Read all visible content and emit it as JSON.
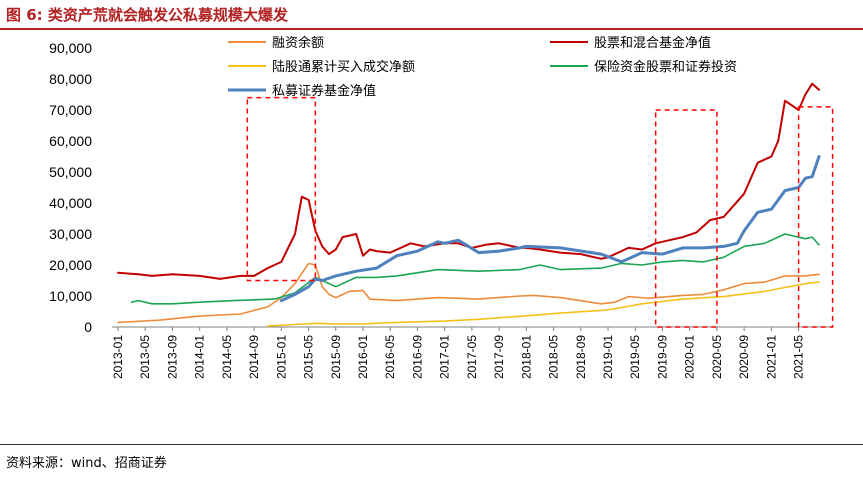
{
  "figure": {
    "title": "图 6:  类资产荒就会触发公私募规模大爆发",
    "source": "资料来源：wind、招商证券"
  },
  "chart_data": {
    "type": "line",
    "title": "图 6:  类资产荒就会触发公私募规模大爆发",
    "ylim": [
      0,
      90000
    ],
    "yticks": [
      0,
      10000,
      20000,
      30000,
      40000,
      50000,
      60000,
      70000,
      80000,
      90000
    ],
    "ytick_labels": [
      "0",
      "10,000",
      "20,000",
      "30,000",
      "40,000",
      "50,000",
      "60,000",
      "70,000",
      "80,000",
      "90,000"
    ],
    "xlim": [
      "2013-01",
      "2021-08"
    ],
    "xtick_labels": [
      "2013-01",
      "2013-05",
      "2013-09",
      "2014-01",
      "2014-05",
      "2014-09",
      "2015-01",
      "2015-05",
      "2015-09",
      "2016-01",
      "2016-05",
      "2016-09",
      "2017-01",
      "2017-05",
      "2017-09",
      "2018-01",
      "2018-05",
      "2018-09",
      "2019-01",
      "2019-05",
      "2019-09",
      "2020-01",
      "2020-05",
      "2020-09",
      "2021-01",
      "2021-05"
    ],
    "legend_position": "top",
    "series": [
      {
        "name": "融资余额",
        "color": "#ed8c3d",
        "width": 1.6,
        "x": [
          "2013-01",
          "2013-07",
          "2014-01",
          "2014-07",
          "2014-11",
          "2015-01",
          "2015-03",
          "2015-05",
          "2015-06",
          "2015-07",
          "2015-08",
          "2015-09",
          "2015-11",
          "2016-01",
          "2016-02",
          "2016-06",
          "2016-12",
          "2017-06",
          "2017-12",
          "2018-02",
          "2018-06",
          "2018-12",
          "2019-02",
          "2019-04",
          "2019-07",
          "2019-12",
          "2020-03",
          "2020-06",
          "2020-09",
          "2020-12",
          "2021-03",
          "2021-06",
          "2021-08"
        ],
        "values": [
          1500,
          2200,
          3500,
          4200,
          6500,
          9500,
          14000,
          20500,
          20000,
          13000,
          10500,
          9500,
          11500,
          11800,
          9000,
          8500,
          9500,
          9000,
          10000,
          10200,
          9500,
          7500,
          8000,
          9800,
          9300,
          10200,
          10500,
          12000,
          14000,
          14500,
          16500,
          16500,
          17000
        ]
      },
      {
        "name": "股票和混合基金净值",
        "color": "#c00000",
        "width": 2,
        "x": [
          "2013-01",
          "2013-04",
          "2013-06",
          "2013-09",
          "2014-01",
          "2014-04",
          "2014-07",
          "2014-09",
          "2014-11",
          "2015-01",
          "2015-03",
          "2015-04",
          "2015-05",
          "2015-06",
          "2015-07",
          "2015-08",
          "2015-09",
          "2015-10",
          "2015-12",
          "2016-01",
          "2016-02",
          "2016-03",
          "2016-05",
          "2016-08",
          "2016-10",
          "2017-01",
          "2017-03",
          "2017-05",
          "2017-07",
          "2017-09",
          "2017-12",
          "2018-01",
          "2018-03",
          "2018-06",
          "2018-09",
          "2018-12",
          "2019-01",
          "2019-04",
          "2019-06",
          "2019-08",
          "2019-10",
          "2019-12",
          "2020-02",
          "2020-04",
          "2020-06",
          "2020-07",
          "2020-09",
          "2020-11",
          "2021-01",
          "2021-02",
          "2021-03",
          "2021-05",
          "2021-06",
          "2021-07",
          "2021-08"
        ],
        "values": [
          17500,
          17000,
          16500,
          17000,
          16500,
          15500,
          16500,
          16500,
          19000,
          21000,
          30000,
          42000,
          41000,
          31000,
          26000,
          23500,
          25000,
          29000,
          30000,
          23000,
          25000,
          24500,
          24000,
          27000,
          26000,
          27000,
          27000,
          25500,
          26500,
          27000,
          25500,
          25500,
          25000,
          24000,
          23500,
          22000,
          22500,
          25500,
          25000,
          27000,
          28000,
          29000,
          30500,
          34500,
          35500,
          38000,
          43000,
          53000,
          55000,
          60000,
          73000,
          70000,
          75000,
          78500,
          76500
        ]
      },
      {
        "name": "陆股通累计买入成交净额",
        "color": "#f5c01a",
        "width": 1.6,
        "x": [
          "2014-11",
          "2015-03",
          "2015-06",
          "2015-09",
          "2016-01",
          "2016-06",
          "2017-01",
          "2017-06",
          "2018-01",
          "2018-06",
          "2019-01",
          "2019-06",
          "2019-12",
          "2020-06",
          "2020-12",
          "2021-06",
          "2021-08"
        ],
        "values": [
          300,
          800,
          1200,
          1000,
          1000,
          1500,
          1900,
          2500,
          3600,
          4500,
          5500,
          7500,
          9000,
          9800,
          11500,
          14000,
          14500
        ]
      },
      {
        "name": "保险资金股票和证券投资",
        "color": "#1aa552",
        "width": 1.6,
        "x": [
          "2013-03",
          "2013-04",
          "2013-06",
          "2013-09",
          "2014-01",
          "2014-06",
          "2014-12",
          "2015-03",
          "2015-06",
          "2015-09",
          "2015-12",
          "2016-03",
          "2016-06",
          "2016-12",
          "2017-06",
          "2017-12",
          "2018-03",
          "2018-06",
          "2018-12",
          "2019-03",
          "2019-06",
          "2019-09",
          "2019-12",
          "2020-03",
          "2020-06",
          "2020-09",
          "2020-12",
          "2021-03",
          "2021-06",
          "2021-07",
          "2021-08"
        ],
        "values": [
          8000,
          8500,
          7500,
          7500,
          8000,
          8500,
          9000,
          11000,
          16000,
          13000,
          16000,
          16000,
          16500,
          18500,
          18000,
          18500,
          20000,
          18500,
          19000,
          20500,
          20000,
          21000,
          21500,
          21000,
          22500,
          26000,
          27000,
          30000,
          28500,
          29000,
          26500
        ]
      },
      {
        "name": "私募证券基金净值",
        "color": "#4e81bd",
        "width": 3,
        "x": [
          "2015-01",
          "2015-03",
          "2015-05",
          "2015-06",
          "2015-07",
          "2015-09",
          "2015-12",
          "2016-03",
          "2016-06",
          "2016-09",
          "2016-12",
          "2017-01",
          "2017-03",
          "2017-06",
          "2017-09",
          "2017-12",
          "2018-01",
          "2018-06",
          "2018-12",
          "2019-03",
          "2019-06",
          "2019-09",
          "2019-12",
          "2020-03",
          "2020-06",
          "2020-08",
          "2020-09",
          "2020-11",
          "2021-01",
          "2021-03",
          "2021-05",
          "2021-06",
          "2021-07",
          "2021-08"
        ],
        "values": [
          8500,
          10500,
          13000,
          15500,
          15000,
          16500,
          18000,
          19000,
          23000,
          24500,
          27500,
          27000,
          28000,
          24000,
          24500,
          25500,
          26000,
          25500,
          23500,
          21000,
          24000,
          23500,
          25500,
          25500,
          26000,
          27000,
          31000,
          37000,
          38000,
          44000,
          45000,
          48000,
          48500,
          55000
        ]
      }
    ],
    "annotations": [
      {
        "type": "dashed-box",
        "color": "#ff0000",
        "from_x": "2014-08",
        "to_x": "2015-06",
        "from_y": 15000,
        "to_y": 74000
      },
      {
        "type": "dashed-box",
        "color": "#ff0000",
        "from_x": "2019-08",
        "to_x": "2020-05",
        "from_y": 0,
        "to_y": 70000
      },
      {
        "type": "dashed-box",
        "color": "#ff0000",
        "from_x": "2021-05",
        "to_x": "2021-10",
        "from_y": 0,
        "to_y": 71000
      }
    ]
  }
}
